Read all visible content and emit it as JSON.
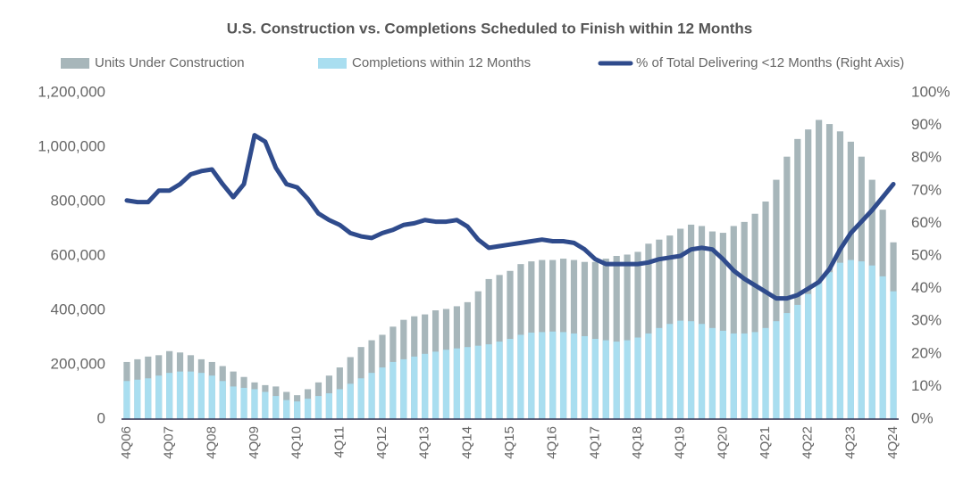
{
  "chart_data": {
    "type": "bar-line",
    "title": "U.S. Construction vs. Completions Scheduled to Finish within 12 Months",
    "categories": [
      "4Q06",
      null,
      null,
      null,
      "4Q07",
      null,
      null,
      null,
      "4Q08",
      null,
      null,
      null,
      "4Q09",
      null,
      null,
      null,
      "4Q10",
      null,
      null,
      null,
      "4Q11",
      null,
      null,
      null,
      "4Q12",
      null,
      null,
      null,
      "4Q13",
      null,
      null,
      null,
      "4Q14",
      null,
      null,
      null,
      "4Q15",
      null,
      null,
      null,
      "4Q16",
      null,
      null,
      null,
      "4Q17",
      null,
      null,
      null,
      "4Q18",
      null,
      null,
      null,
      "4Q19",
      null,
      null,
      null,
      "4Q20",
      null,
      null,
      null,
      "4Q21",
      null,
      null,
      null,
      "4Q22",
      null,
      null,
      null,
      "4Q23",
      null,
      null,
      null,
      "4Q24"
    ],
    "series": [
      {
        "name": "Units Under Construction",
        "type": "bar",
        "color": "#a7b6ba",
        "values": [
          210000,
          220000,
          230000,
          235000,
          250000,
          245000,
          235000,
          220000,
          210000,
          195000,
          175000,
          155000,
          135000,
          125000,
          120000,
          100000,
          88000,
          110000,
          135000,
          160000,
          190000,
          228000,
          265000,
          290000,
          310000,
          340000,
          365000,
          378000,
          385000,
          400000,
          405000,
          415000,
          430000,
          470000,
          515000,
          530000,
          545000,
          570000,
          580000,
          585000,
          585000,
          590000,
          585000,
          578000,
          578000,
          590000,
          600000,
          605000,
          615000,
          645000,
          660000,
          675000,
          700000,
          715000,
          710000,
          690000,
          685000,
          710000,
          725000,
          755000,
          800000,
          880000,
          965000,
          1030000,
          1065000,
          1100000,
          1085000,
          1058000,
          1020000,
          965000,
          880000,
          770000,
          650000
        ]
      },
      {
        "name": "Completions within 12 Months",
        "type": "bar",
        "color": "#a9def0",
        "values": [
          140000,
          145000,
          150000,
          160000,
          170000,
          175000,
          175000,
          170000,
          160000,
          140000,
          120000,
          115000,
          110000,
          100000,
          85000,
          70000,
          65000,
          75000,
          85000,
          95000,
          110000,
          130000,
          150000,
          170000,
          190000,
          210000,
          220000,
          230000,
          240000,
          248000,
          255000,
          260000,
          265000,
          270000,
          275000,
          285000,
          295000,
          310000,
          318000,
          320000,
          322000,
          320000,
          315000,
          305000,
          295000,
          290000,
          285000,
          290000,
          300000,
          315000,
          335000,
          350000,
          362000,
          360000,
          350000,
          335000,
          325000,
          315000,
          315000,
          320000,
          335000,
          360000,
          390000,
          420000,
          460000,
          500000,
          540000,
          575000,
          585000,
          580000,
          565000,
          525000,
          470000
        ]
      },
      {
        "name": "% of Total Delivering <12 Months (Right Axis)",
        "type": "line",
        "axis": "y2",
        "color": "#2f4b8c",
        "values": [
          67,
          66.5,
          66.5,
          70,
          70,
          72,
          75,
          76,
          76.5,
          72,
          68,
          72,
          87,
          85,
          77,
          72,
          71,
          67.5,
          63,
          61,
          59.5,
          57,
          56,
          55.5,
          57,
          58,
          59.5,
          60,
          61,
          60.5,
          60.5,
          61,
          59,
          55,
          52.5,
          53,
          53.5,
          54,
          54.5,
          55,
          54.5,
          54.5,
          54,
          52,
          49,
          47.5,
          47.5,
          47.5,
          47.5,
          48,
          49,
          49.5,
          50,
          52,
          52.5,
          52,
          49,
          45.5,
          43,
          41,
          39,
          37,
          37,
          38,
          40,
          42,
          46,
          52,
          57,
          60.5,
          64,
          68,
          72
        ]
      }
    ],
    "ylim": [
      0,
      1200000
    ],
    "yticks": [
      0,
      {
        "value": 200000,
        "label": "200,000"
      },
      {
        "value": 400000,
        "label": "400,000"
      },
      {
        "value": 600000,
        "label": "600,000"
      },
      {
        "value": 800000,
        "label": "800,000"
      },
      {
        "value": 1000000,
        "label": "1,000,000"
      },
      {
        "value": 1200000,
        "label": "1,200,000"
      }
    ],
    "y2lim": [
      0,
      100
    ],
    "y2ticks": [
      {
        "value": 0,
        "label": "0%"
      },
      {
        "value": 10,
        "label": "10%"
      },
      {
        "value": 20,
        "label": "20%"
      },
      {
        "value": 30,
        "label": "30%"
      },
      {
        "value": 40,
        "label": "40%"
      },
      {
        "value": 50,
        "label": "50%"
      },
      {
        "value": 60,
        "label": "60%"
      },
      {
        "value": 70,
        "label": "70%"
      },
      {
        "value": 80,
        "label": "80%"
      },
      {
        "value": 90,
        "label": "90%"
      },
      {
        "value": 100,
        "label": "100%"
      }
    ],
    "grid": false,
    "legend": "top"
  }
}
